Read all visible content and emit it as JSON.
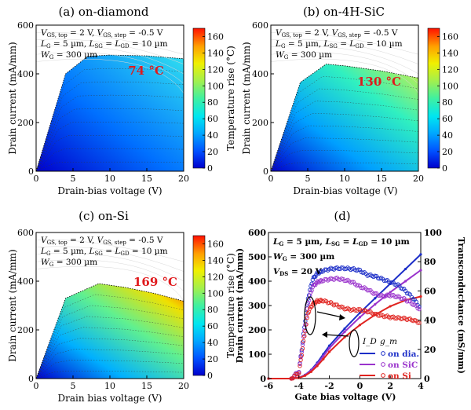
{
  "chart_data": [
    {
      "type": "line",
      "panel": "a",
      "title": "(a) on-diamond",
      "xlabel": "Drain-bias voltage (V)",
      "ylabel": "Drain current (mA/mm)",
      "colorbar_label": "Temperature rise (°C)",
      "xlim": [
        0,
        20
      ],
      "ylim": [
        0,
        600
      ],
      "clim": [
        0,
        170
      ],
      "xticks": [
        "0",
        "5",
        "10",
        "15",
        "20"
      ],
      "yticks": [
        "0",
        "200",
        "400",
        "600"
      ],
      "cticks": [
        "0",
        "20",
        "40",
        "60",
        "80",
        "100",
        "120",
        "140",
        "160"
      ],
      "annotations": [
        "V_GS, top = 2 V, V_GS, step = -0.5 V",
        "L_G = 5 µm, L_SG = L_GD = 10 µm",
        "W_G = 300 µm"
      ],
      "peak_temperature_label": "74 °C",
      "series": [
        {
          "name": "VGS = 2 V (top curve)",
          "x": [
            0,
            4,
            7,
            10,
            15,
            20
          ],
          "y": [
            0,
            400,
            472,
            477,
            474,
            462
          ]
        }
      ]
    },
    {
      "type": "line",
      "panel": "b",
      "title": "(b) on-4H-SiC",
      "xlabel": "Drain-bias voltage (V)",
      "ylabel": "Drain current (mA/mm)",
      "colorbar_label": "Temperature rise (°C)",
      "xlim": [
        0,
        20
      ],
      "ylim": [
        0,
        600
      ],
      "clim": [
        0,
        170
      ],
      "xticks": [
        "0",
        "5",
        "10",
        "15",
        "20"
      ],
      "yticks": [
        "0",
        "200",
        "400",
        "600"
      ],
      "cticks": [
        "0",
        "20",
        "40",
        "60",
        "80",
        "100",
        "120",
        "140",
        "160"
      ],
      "annotations": [
        "V_GS, top = 2 V, V_GS, step = -0.5 V",
        "L_G = 5 µm, L_SG = L_GD = 10 µm",
        "W_G = 300 µm"
      ],
      "peak_temperature_label": "130 °C",
      "series": [
        {
          "name": "VGS = 2 V (top curve)",
          "x": [
            0,
            4,
            7.5,
            10,
            15,
            20
          ],
          "y": [
            0,
            365,
            440,
            433,
            412,
            383
          ]
        }
      ]
    },
    {
      "type": "line",
      "panel": "c",
      "title": "(c) on-Si",
      "xlabel": "Drain bias voltage (V)",
      "ylabel": "Drain current (mA/mm)",
      "colorbar_label": "Temperature rise (°C)",
      "xlim": [
        0,
        20
      ],
      "ylim": [
        0,
        600
      ],
      "clim": [
        0,
        170
      ],
      "xticks": [
        "0",
        "5",
        "10",
        "15",
        "20"
      ],
      "yticks": [
        "0",
        "200",
        "400",
        "600"
      ],
      "cticks": [
        "0",
        "20",
        "40",
        "60",
        "80",
        "100",
        "120",
        "140",
        "160"
      ],
      "annotations": [
        "V_GS, top = 2 V, V_GS, step = -0.5 V",
        "L_G = 5 µm, L_SG = L_GD = 10 µm",
        "W_G = 300 µm"
      ],
      "peak_temperature_label": "169 °C",
      "series": [
        {
          "name": "VGS = 2 V (top curve)",
          "x": [
            0,
            4,
            8.5,
            12,
            16,
            20
          ],
          "y": [
            0,
            330,
            390,
            375,
            350,
            318
          ]
        }
      ]
    },
    {
      "type": "line",
      "panel": "d",
      "title": "(d)",
      "xlabel": "Gate bias voltage (V)",
      "ylabel": "Drain current (mA/mm)",
      "y2label": "Transconductance (mS/mm)",
      "xlim": [
        -6,
        4
      ],
      "ylim": [
        0,
        600
      ],
      "y2lim": [
        0,
        100
      ],
      "xticks": [
        "-6",
        "-4",
        "-2",
        "0",
        "2",
        "4"
      ],
      "yticks": [
        "0",
        "100",
        "200",
        "300",
        "400",
        "500",
        "600"
      ],
      "y2ticks": [
        "0",
        "20",
        "40",
        "60",
        "80",
        "100"
      ],
      "annotations": [
        "L_G = 5 µm, L_SG = L_GD = 10 µm",
        "W_G = 300 µm",
        "V_DS = 20 V"
      ],
      "legend": {
        "id_label": "I_D",
        "gm_label": "g_m",
        "entries": [
          "on dia.",
          "on SiC",
          "on Si"
        ],
        "placement": "lower-right"
      },
      "series": [
        {
          "name": "on dia. I_D",
          "axis": "left",
          "x": [
            -6,
            -4.5,
            -4,
            -3.6,
            -3.2,
            -2.8,
            -2.4,
            -2,
            -1,
            0,
            1,
            2,
            3,
            4
          ],
          "y": [
            0,
            0,
            4,
            15,
            35,
            65,
            100,
            135,
            205,
            270,
            330,
            390,
            450,
            510
          ]
        },
        {
          "name": "on SiC I_D",
          "axis": "left",
          "x": [
            -6,
            -4.5,
            -4,
            -3.6,
            -3.2,
            -2.8,
            -2.4,
            -2,
            -1,
            0,
            1,
            2,
            3,
            4
          ],
          "y": [
            0,
            0,
            4,
            14,
            33,
            60,
            92,
            125,
            192,
            252,
            305,
            355,
            400,
            445
          ]
        },
        {
          "name": "on Si I_D",
          "axis": "left",
          "x": [
            -6,
            -4.5,
            -4,
            -3.6,
            -3.2,
            -2.8,
            -2.4,
            -2,
            -1,
            0,
            1,
            2,
            3,
            4
          ],
          "y": [
            0,
            0,
            3,
            12,
            28,
            52,
            80,
            110,
            170,
            220,
            262,
            297,
            322,
            337
          ]
        },
        {
          "name": "on dia. g_m",
          "axis": "right",
          "x": [
            -4.5,
            -4,
            -3.7,
            -3.4,
            -3.1,
            -2.8,
            -2.5,
            -2,
            -1.5,
            -1,
            -0.5,
            0,
            0.5,
            1,
            1.5,
            2,
            2.5,
            3,
            3.5,
            4
          ],
          "y": [
            0,
            5,
            30,
            55,
            68,
            72,
            73.5,
            75,
            75.5,
            75.5,
            75,
            74,
            71,
            70,
            68,
            66,
            64,
            60,
            55,
            48
          ]
        },
        {
          "name": "on SiC g_m",
          "axis": "right",
          "x": [
            -4.5,
            -4,
            -3.7,
            -3.4,
            -3.1,
            -2.8,
            -2.5,
            -2,
            -1.5,
            -1,
            -0.5,
            0,
            0.5,
            1,
            1.5,
            2,
            2.5,
            3,
            3.5,
            4
          ],
          "y": [
            0,
            5,
            28,
            52,
            63,
            66,
            67,
            68,
            68.5,
            67.5,
            66,
            63,
            61,
            58,
            56.5,
            57,
            56,
            54,
            51,
            47
          ]
        },
        {
          "name": "on Si g_m",
          "axis": "right",
          "x": [
            -4.5,
            -4,
            -3.7,
            -3.4,
            -3.1,
            -2.8,
            -2.5,
            -2,
            -1.5,
            -1,
            -0.5,
            0,
            0.5,
            1,
            1.5,
            2,
            2.5,
            3,
            3.5,
            4
          ],
          "y": [
            0,
            4,
            25,
            45,
            51,
            53,
            53.5,
            52,
            50,
            48,
            47,
            47,
            46,
            44,
            43,
            42,
            41.5,
            41,
            40,
            38
          ]
        }
      ]
    }
  ]
}
